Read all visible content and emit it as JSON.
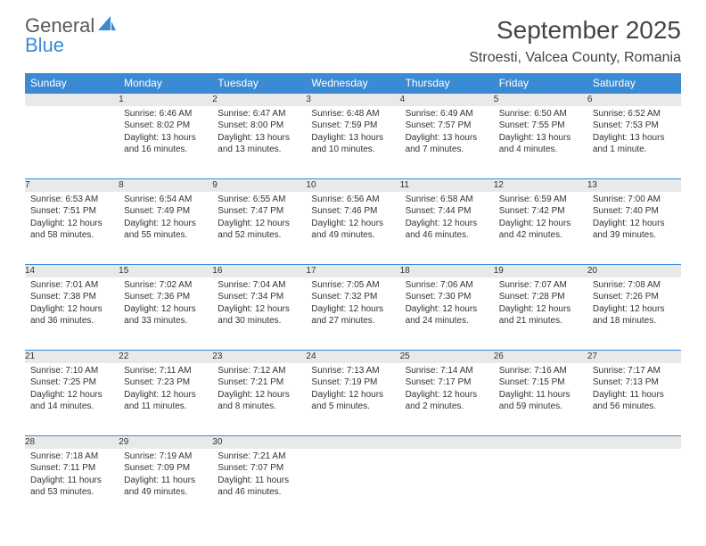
{
  "logo": {
    "line1": "General",
    "line2": "Blue"
  },
  "title": "September 2025",
  "location": "Stroesti, Valcea County, Romania",
  "colors": {
    "headerBg": "#3b8bd4",
    "headerText": "#ffffff",
    "dayNumBg": "#e9e9e9",
    "bodyText": "#333333",
    "titleText": "#444444",
    "logoGray": "#5a5a5a",
    "logoBlue": "#3b8bd4"
  },
  "dayNames": [
    "Sunday",
    "Monday",
    "Tuesday",
    "Wednesday",
    "Thursday",
    "Friday",
    "Saturday"
  ],
  "weeks": [
    [
      {
        "num": "",
        "lines": []
      },
      {
        "num": "1",
        "lines": [
          "Sunrise: 6:46 AM",
          "Sunset: 8:02 PM",
          "Daylight: 13 hours and 16 minutes."
        ]
      },
      {
        "num": "2",
        "lines": [
          "Sunrise: 6:47 AM",
          "Sunset: 8:00 PM",
          "Daylight: 13 hours and 13 minutes."
        ]
      },
      {
        "num": "3",
        "lines": [
          "Sunrise: 6:48 AM",
          "Sunset: 7:59 PM",
          "Daylight: 13 hours and 10 minutes."
        ]
      },
      {
        "num": "4",
        "lines": [
          "Sunrise: 6:49 AM",
          "Sunset: 7:57 PM",
          "Daylight: 13 hours and 7 minutes."
        ]
      },
      {
        "num": "5",
        "lines": [
          "Sunrise: 6:50 AM",
          "Sunset: 7:55 PM",
          "Daylight: 13 hours and 4 minutes."
        ]
      },
      {
        "num": "6",
        "lines": [
          "Sunrise: 6:52 AM",
          "Sunset: 7:53 PM",
          "Daylight: 13 hours and 1 minute."
        ]
      }
    ],
    [
      {
        "num": "7",
        "lines": [
          "Sunrise: 6:53 AM",
          "Sunset: 7:51 PM",
          "Daylight: 12 hours and 58 minutes."
        ]
      },
      {
        "num": "8",
        "lines": [
          "Sunrise: 6:54 AM",
          "Sunset: 7:49 PM",
          "Daylight: 12 hours and 55 minutes."
        ]
      },
      {
        "num": "9",
        "lines": [
          "Sunrise: 6:55 AM",
          "Sunset: 7:47 PM",
          "Daylight: 12 hours and 52 minutes."
        ]
      },
      {
        "num": "10",
        "lines": [
          "Sunrise: 6:56 AM",
          "Sunset: 7:46 PM",
          "Daylight: 12 hours and 49 minutes."
        ]
      },
      {
        "num": "11",
        "lines": [
          "Sunrise: 6:58 AM",
          "Sunset: 7:44 PM",
          "Daylight: 12 hours and 46 minutes."
        ]
      },
      {
        "num": "12",
        "lines": [
          "Sunrise: 6:59 AM",
          "Sunset: 7:42 PM",
          "Daylight: 12 hours and 42 minutes."
        ]
      },
      {
        "num": "13",
        "lines": [
          "Sunrise: 7:00 AM",
          "Sunset: 7:40 PM",
          "Daylight: 12 hours and 39 minutes."
        ]
      }
    ],
    [
      {
        "num": "14",
        "lines": [
          "Sunrise: 7:01 AM",
          "Sunset: 7:38 PM",
          "Daylight: 12 hours and 36 minutes."
        ]
      },
      {
        "num": "15",
        "lines": [
          "Sunrise: 7:02 AM",
          "Sunset: 7:36 PM",
          "Daylight: 12 hours and 33 minutes."
        ]
      },
      {
        "num": "16",
        "lines": [
          "Sunrise: 7:04 AM",
          "Sunset: 7:34 PM",
          "Daylight: 12 hours and 30 minutes."
        ]
      },
      {
        "num": "17",
        "lines": [
          "Sunrise: 7:05 AM",
          "Sunset: 7:32 PM",
          "Daylight: 12 hours and 27 minutes."
        ]
      },
      {
        "num": "18",
        "lines": [
          "Sunrise: 7:06 AM",
          "Sunset: 7:30 PM",
          "Daylight: 12 hours and 24 minutes."
        ]
      },
      {
        "num": "19",
        "lines": [
          "Sunrise: 7:07 AM",
          "Sunset: 7:28 PM",
          "Daylight: 12 hours and 21 minutes."
        ]
      },
      {
        "num": "20",
        "lines": [
          "Sunrise: 7:08 AM",
          "Sunset: 7:26 PM",
          "Daylight: 12 hours and 18 minutes."
        ]
      }
    ],
    [
      {
        "num": "21",
        "lines": [
          "Sunrise: 7:10 AM",
          "Sunset: 7:25 PM",
          "Daylight: 12 hours and 14 minutes."
        ]
      },
      {
        "num": "22",
        "lines": [
          "Sunrise: 7:11 AM",
          "Sunset: 7:23 PM",
          "Daylight: 12 hours and 11 minutes."
        ]
      },
      {
        "num": "23",
        "lines": [
          "Sunrise: 7:12 AM",
          "Sunset: 7:21 PM",
          "Daylight: 12 hours and 8 minutes."
        ]
      },
      {
        "num": "24",
        "lines": [
          "Sunrise: 7:13 AM",
          "Sunset: 7:19 PM",
          "Daylight: 12 hours and 5 minutes."
        ]
      },
      {
        "num": "25",
        "lines": [
          "Sunrise: 7:14 AM",
          "Sunset: 7:17 PM",
          "Daylight: 12 hours and 2 minutes."
        ]
      },
      {
        "num": "26",
        "lines": [
          "Sunrise: 7:16 AM",
          "Sunset: 7:15 PM",
          "Daylight: 11 hours and 59 minutes."
        ]
      },
      {
        "num": "27",
        "lines": [
          "Sunrise: 7:17 AM",
          "Sunset: 7:13 PM",
          "Daylight: 11 hours and 56 minutes."
        ]
      }
    ],
    [
      {
        "num": "28",
        "lines": [
          "Sunrise: 7:18 AM",
          "Sunset: 7:11 PM",
          "Daylight: 11 hours and 53 minutes."
        ]
      },
      {
        "num": "29",
        "lines": [
          "Sunrise: 7:19 AM",
          "Sunset: 7:09 PM",
          "Daylight: 11 hours and 49 minutes."
        ]
      },
      {
        "num": "30",
        "lines": [
          "Sunrise: 7:21 AM",
          "Sunset: 7:07 PM",
          "Daylight: 11 hours and 46 minutes."
        ]
      },
      {
        "num": "",
        "lines": []
      },
      {
        "num": "",
        "lines": []
      },
      {
        "num": "",
        "lines": []
      },
      {
        "num": "",
        "lines": []
      }
    ]
  ]
}
